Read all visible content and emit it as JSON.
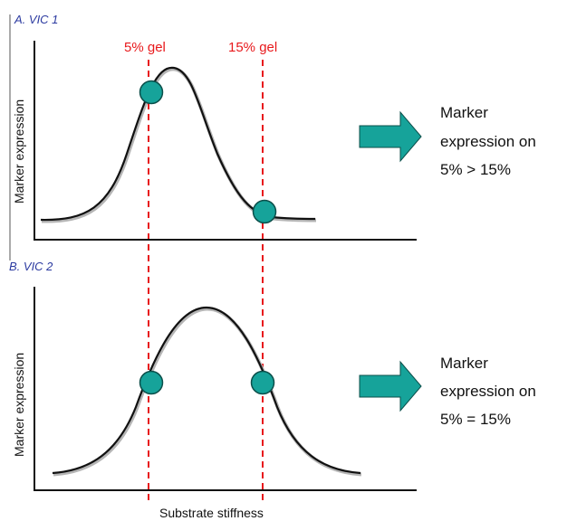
{
  "panel_a": {
    "label": "A. VIC 1",
    "ylabel": "Marker expression",
    "note_lines": [
      "Marker",
      "expression on",
      "5% > 15%"
    ]
  },
  "panel_b": {
    "label": "B. VIC 2",
    "ylabel": "Marker expression",
    "note_lines": [
      "Marker",
      "expression on",
      "5% = 15%"
    ]
  },
  "gels": [
    "5% gel",
    "15% gel"
  ],
  "xlabel": "Substrate stiffness",
  "colors": {
    "curve": "#111111",
    "curve_shadow": "#b5b5b5",
    "marker_fill": "#16a39a",
    "marker_stroke": "#0b4f4a",
    "dashed_line": "#e8191c",
    "arrow_fill": "#16a39a",
    "panel_label": "#2b3aa0"
  }
}
